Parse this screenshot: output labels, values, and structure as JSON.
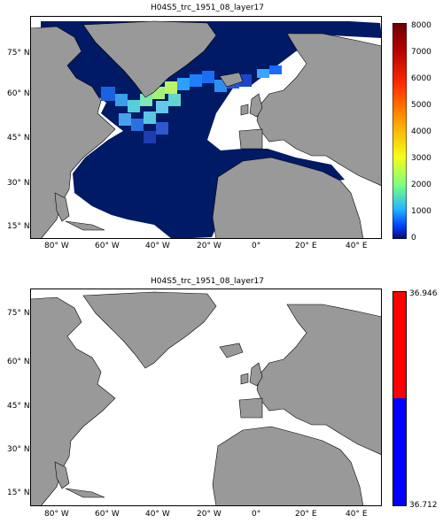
{
  "panels": [
    {
      "title": "H04S5_trc_1951_08_layer17",
      "lat_labels": [
        "75° N",
        "60° N",
        "45° N",
        "30° N",
        "15° N"
      ],
      "lon_labels": [
        "80° W",
        "60° W",
        "40° W",
        "20° W",
        "0°",
        "20° E",
        "40° E"
      ],
      "colorbar": {
        "type": "continuous",
        "ticks": [
          "8000",
          "7000",
          "6000",
          "5000",
          "4000",
          "3000",
          "2000",
          "1000",
          "0"
        ],
        "colors": [
          "#6b0000",
          "#c80000",
          "#ff3a00",
          "#ff9a00",
          "#f4ff18",
          "#9cff66",
          "#2cc5ff",
          "#0047ff",
          "#001070"
        ]
      },
      "colors": {
        "ocean_deep": "#001a66",
        "land": "#999999",
        "nodata": "#ffffff"
      }
    },
    {
      "title": "H04S5_trc_1951_08_layer17",
      "lat_labels": [
        "75° N",
        "60° N",
        "45° N",
        "30° N",
        "15° N"
      ],
      "lon_labels": [
        "80° W",
        "60° W",
        "40° W",
        "20° W",
        "0°",
        "20° E",
        "40° E"
      ],
      "colorbar": {
        "type": "two-tone",
        "top_label": "36.946",
        "bottom_label": "36.712",
        "colors": [
          "#ff0000",
          "#0000ff"
        ]
      },
      "colors": {
        "land": "#999999",
        "nodata": "#ffffff"
      }
    }
  ]
}
